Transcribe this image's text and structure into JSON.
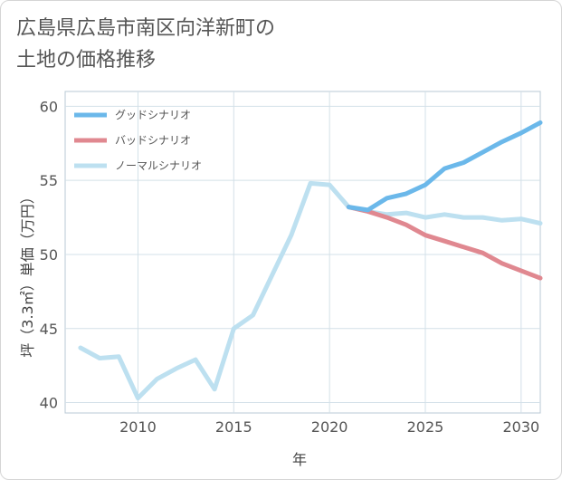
{
  "title": {
    "line1": "広島県広島市南区向洋新町の",
    "line2": "土地の価格推移"
  },
  "chart_data": {
    "type": "line",
    "xlabel": "年",
    "ylabel": "坪（3.3㎡）単価（万円）",
    "xlim": [
      2006.2,
      2031
    ],
    "ylim": [
      39.3,
      61
    ],
    "xticks": [
      2010,
      2015,
      2020,
      2025,
      2030
    ],
    "yticks": [
      40,
      45,
      50,
      55,
      60
    ],
    "grid": true,
    "legend_position": "top-left",
    "series": [
      {
        "name": "グッドシナリオ",
        "color": "#6bb8ea",
        "x": [
          2021,
          2022,
          2023,
          2024,
          2025,
          2026,
          2027,
          2028,
          2029,
          2030,
          2031
        ],
        "y": [
          53.2,
          53.0,
          53.8,
          54.1,
          54.7,
          55.8,
          56.2,
          56.9,
          57.6,
          58.2,
          58.9
        ]
      },
      {
        "name": "バッドシナリオ",
        "color": "#e08890",
        "x": [
          2021,
          2022,
          2023,
          2024,
          2025,
          2026,
          2027,
          2028,
          2029,
          2030,
          2031
        ],
        "y": [
          53.2,
          52.9,
          52.5,
          52.0,
          51.3,
          50.9,
          50.5,
          50.1,
          49.4,
          48.9,
          48.4
        ]
      },
      {
        "name": "ノーマルシナリオ",
        "color": "#bde0f0",
        "x": [
          2007,
          2008,
          2009,
          2010,
          2011,
          2012,
          2013,
          2014,
          2015,
          2016,
          2017,
          2018,
          2019,
          2020,
          2021,
          2022,
          2023,
          2024,
          2025,
          2026,
          2027,
          2028,
          2029,
          2030,
          2031
        ],
        "y": [
          43.7,
          43.0,
          43.1,
          40.3,
          41.6,
          42.3,
          42.9,
          40.9,
          45.0,
          45.9,
          48.6,
          51.3,
          54.8,
          54.7,
          53.2,
          52.9,
          52.7,
          52.8,
          52.5,
          52.7,
          52.5,
          52.5,
          52.3,
          52.4,
          52.1
        ]
      }
    ]
  }
}
